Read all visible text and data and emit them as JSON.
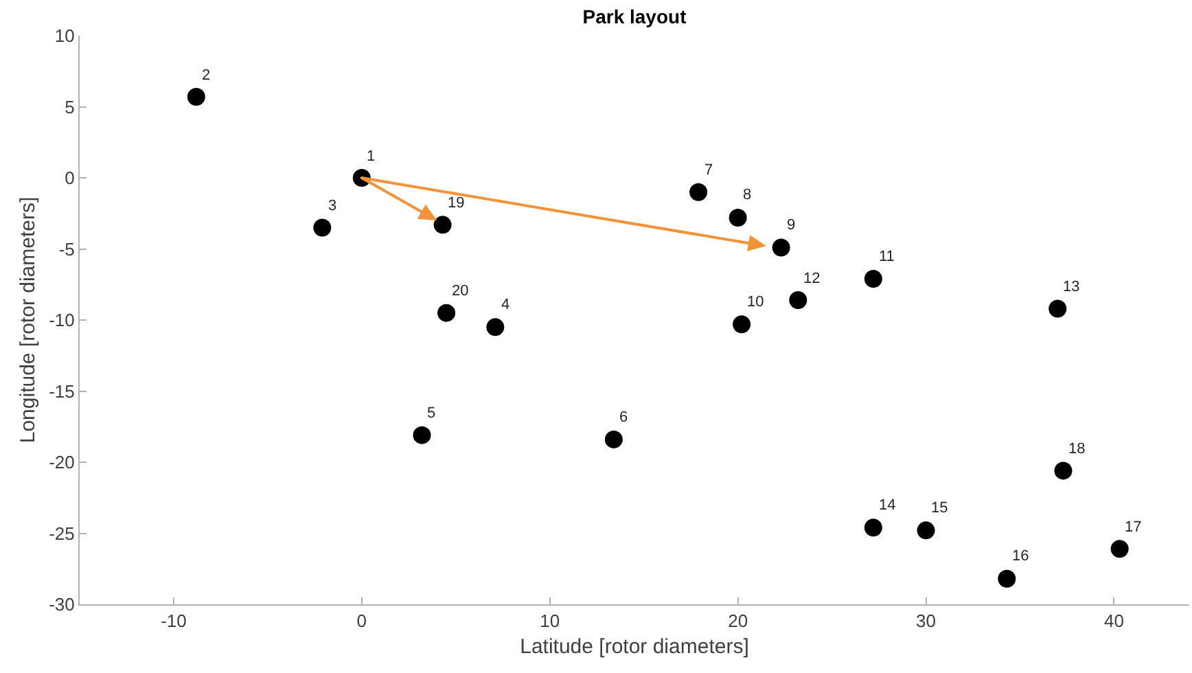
{
  "chart_data": {
    "type": "scatter",
    "title": "Park layout",
    "xlabel": "Latitude [rotor diameters]",
    "ylabel": "Longitude [rotor diameters]",
    "xlim": [
      -15,
      44
    ],
    "ylim": [
      -30,
      10
    ],
    "xticks": [
      -10,
      0,
      10,
      20,
      30,
      40
    ],
    "yticks": [
      -30,
      -25,
      -20,
      -15,
      -10,
      -5,
      0,
      5,
      10
    ],
    "grid": false,
    "series": [
      {
        "color": "#000000",
        "marker": "circle",
        "x": [
          0,
          -8.8,
          -2.1,
          7.1,
          3.2,
          13.4,
          17.9,
          20.0,
          22.3,
          20.2,
          27.2,
          23.2,
          37.0,
          27.2,
          30.0,
          34.3,
          40.3,
          37.3,
          4.3,
          4.5
        ],
        "values": [
          0,
          5.7,
          -3.5,
          -10.5,
          -18.1,
          -18.4,
          -1.0,
          -2.8,
          -4.9,
          -10.3,
          -7.1,
          -8.6,
          -9.2,
          -24.6,
          -24.8,
          -28.2,
          -26.1,
          -20.6,
          -3.3,
          -9.5
        ]
      }
    ],
    "annotations": [
      {
        "text": "1",
        "x": 0,
        "y": 0
      },
      {
        "text": "2",
        "x": -8.8,
        "y": 5.7
      },
      {
        "text": "3",
        "x": -2.1,
        "y": -3.5
      },
      {
        "text": "4",
        "x": 7.1,
        "y": -10.5
      },
      {
        "text": "5",
        "x": 3.2,
        "y": -18.1
      },
      {
        "text": "6",
        "x": 13.4,
        "y": -18.4
      },
      {
        "text": "7",
        "x": 17.9,
        "y": -1.0
      },
      {
        "text": "8",
        "x": 20.0,
        "y": -2.8
      },
      {
        "text": "9",
        "x": 22.3,
        "y": -4.9
      },
      {
        "text": "10",
        "x": 20.2,
        "y": -10.3
      },
      {
        "text": "11",
        "x": 27.2,
        "y": -7.1
      },
      {
        "text": "12",
        "x": 23.2,
        "y": -8.6
      },
      {
        "text": "13",
        "x": 37.0,
        "y": -9.2
      },
      {
        "text": "14",
        "x": 27.2,
        "y": -24.6
      },
      {
        "text": "15",
        "x": 30.0,
        "y": -24.8
      },
      {
        "text": "16",
        "x": 34.3,
        "y": -28.2
      },
      {
        "text": "17",
        "x": 40.3,
        "y": -26.1
      },
      {
        "text": "18",
        "x": 37.3,
        "y": -20.6
      },
      {
        "text": "19",
        "x": 4.3,
        "y": -3.3
      },
      {
        "text": "20",
        "x": 4.5,
        "y": -9.5
      }
    ]
  }
}
